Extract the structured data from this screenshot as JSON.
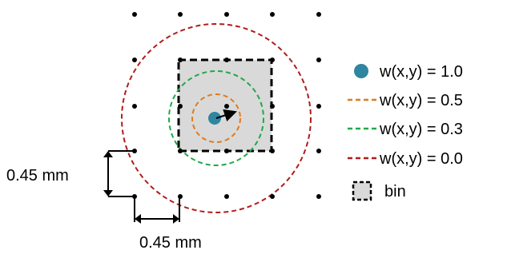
{
  "dimensions": {
    "vertical_label": "0.45 mm",
    "horizontal_label": "0.45 mm"
  },
  "legend": {
    "items": [
      {
        "label": "w(x,y) = 1.0",
        "symbol": "filled-dot",
        "color": "#2e86a0"
      },
      {
        "label": "w(x,y) = 0.5",
        "symbol": "dashed-line",
        "color": "#e07b1f"
      },
      {
        "label": "w(x,y) = 0.3",
        "symbol": "dashed-line",
        "color": "#21a84a"
      },
      {
        "label": "w(x,y) = 0.0",
        "symbol": "dashed-line",
        "color": "#b01c1c"
      },
      {
        "label": "bin",
        "symbol": "dashed-square",
        "color": "#000000"
      }
    ]
  },
  "colors": {
    "grid_dot": "#000000",
    "bin_fill": "#d9d9d9",
    "center": "#2e86a0"
  }
}
